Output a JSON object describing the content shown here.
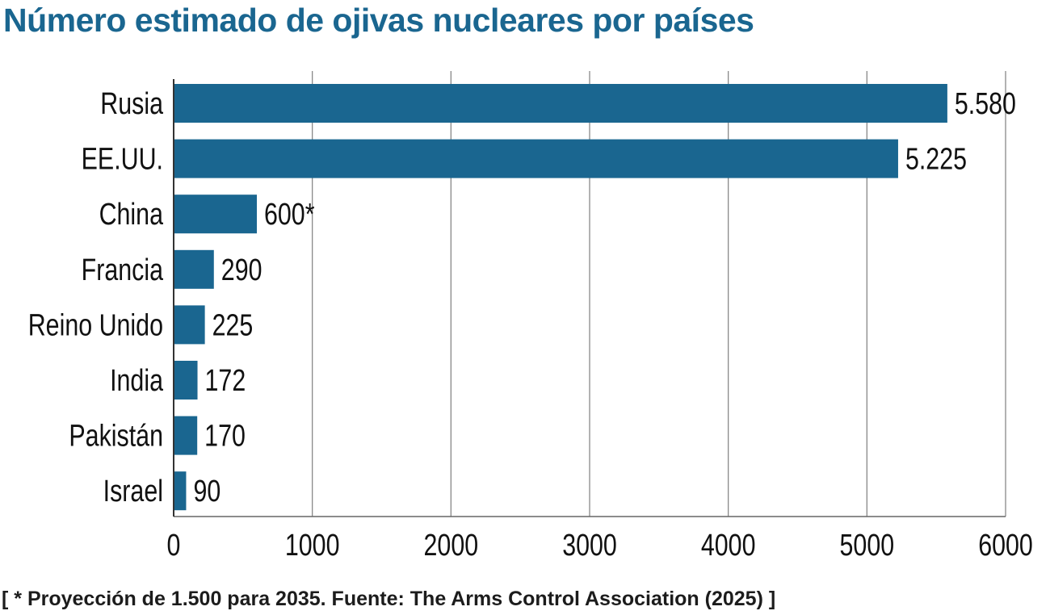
{
  "chart_data": {
    "type": "bar",
    "orientation": "horizontal",
    "title": "Número estimado de ojivas nucleares por países",
    "categories": [
      "Rusia",
      "EE.UU.",
      "China",
      "Francia",
      "Reino Unido",
      "India",
      "Pakistán",
      "Israel"
    ],
    "values": [
      5580,
      5225,
      600,
      290,
      225,
      172,
      170,
      90
    ],
    "value_labels": [
      "5.580",
      "5.225",
      "600*",
      "290",
      "225",
      "172",
      "170",
      "90"
    ],
    "xlim": [
      0,
      6000
    ],
    "xticks": [
      0,
      1000,
      2000,
      3000,
      4000,
      5000,
      6000
    ],
    "xtick_labels": [
      "0",
      "1000",
      "2000",
      "3000",
      "4000",
      "5000",
      "6000"
    ],
    "grid": "vertical",
    "xlabel": "",
    "ylabel": "",
    "footnote": "[ * Proyección de 1.500 para 2035. Fuente: The Arms Control Association (2025) ]",
    "bar_color": "#1a6690"
  }
}
